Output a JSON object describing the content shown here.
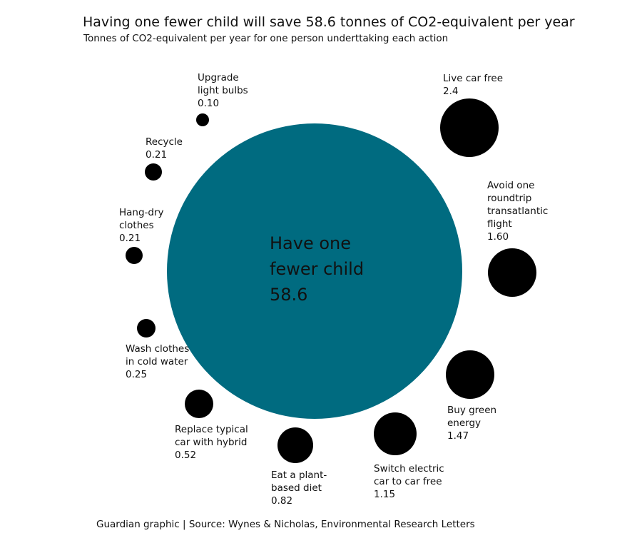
{
  "title": "Having one fewer child will save 58.6 tonnes of CO2-equivalent per year",
  "subtitle": "Tonnes of CO2-equivalent per year for one person underttaking each action",
  "source": "Guardian graphic | Source: Wynes & Nicholas, Environmental Research Letters",
  "colors": {
    "main_bubble": "#006b80",
    "small_bubble": "#000000"
  },
  "chart_data": {
    "type": "bubble",
    "title": "Having one fewer child will save 58.6 tonnes of CO2-equivalent per year",
    "subtitle": "Tonnes of CO2-equivalent per year for one person underttaking each action",
    "unit": "Tonnes of CO2-equivalent per year",
    "items": [
      {
        "label_lines": [
          "Have one",
          "fewer child"
        ],
        "value_text": "58.6",
        "value": 58.6
      },
      {
        "label_lines": [
          "Live car free"
        ],
        "value_text": "2.4",
        "value": 2.4
      },
      {
        "label_lines": [
          "Avoid one",
          "roundtrip",
          "transatlantic",
          "flight"
        ],
        "value_text": "1.60",
        "value": 1.6
      },
      {
        "label_lines": [
          "Buy green",
          "energy"
        ],
        "value_text": "1.47",
        "value": 1.47
      },
      {
        "label_lines": [
          "Switch electric",
          "car to car free"
        ],
        "value_text": "1.15",
        "value": 1.15
      },
      {
        "label_lines": [
          "Eat a plant-",
          "based diet"
        ],
        "value_text": "0.82",
        "value": 0.82
      },
      {
        "label_lines": [
          "Replace typical",
          "car with hybrid"
        ],
        "value_text": "0.52",
        "value": 0.52
      },
      {
        "label_lines": [
          "Wash clothes",
          "in cold water"
        ],
        "value_text": "0.25",
        "value": 0.25
      },
      {
        "label_lines": [
          "Hang-dry",
          "clothes"
        ],
        "value_text": "0.21",
        "value": 0.21
      },
      {
        "label_lines": [
          "Recycle"
        ],
        "value_text": "0.21",
        "value": 0.21
      },
      {
        "label_lines": [
          "Upgrade",
          "light bulbs"
        ],
        "value_text": "0.10",
        "value": 0.1
      }
    ]
  }
}
